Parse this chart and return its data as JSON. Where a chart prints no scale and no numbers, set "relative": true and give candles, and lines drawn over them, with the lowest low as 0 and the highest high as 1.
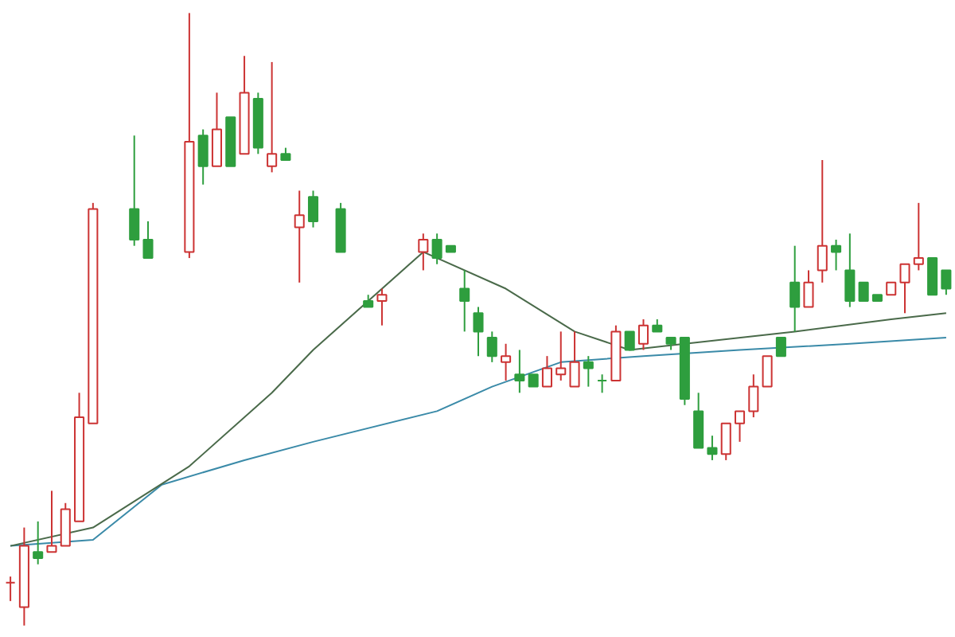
{
  "chart_data": {
    "type": "candlestick",
    "relative": true,
    "categories": [
      null,
      null,
      null,
      null,
      null,
      null,
      null,
      null,
      null,
      null,
      null,
      null,
      null,
      null,
      null,
      null,
      null,
      null,
      null,
      null,
      null,
      null,
      null,
      null,
      null,
      null,
      null,
      null,
      null,
      null,
      null,
      null,
      null,
      null,
      null,
      null,
      null,
      null,
      null,
      null,
      null,
      null,
      null,
      null,
      null,
      null,
      null,
      null,
      null,
      null,
      null,
      null,
      null,
      null,
      null,
      null,
      null,
      null,
      null,
      null,
      null,
      null,
      null,
      null,
      null,
      null,
      null,
      null,
      null
    ],
    "ohlc": [
      [
        0.07,
        0.08,
        0.04,
        0.07
      ],
      [
        0.03,
        0.16,
        0.0,
        0.13
      ],
      [
        0.12,
        0.17,
        0.1,
        0.11
      ],
      [
        0.12,
        0.22,
        0.12,
        0.13
      ],
      [
        0.13,
        0.2,
        0.13,
        0.19
      ],
      [
        0.17,
        0.38,
        0.17,
        0.34
      ],
      [
        0.33,
        0.69,
        0.33,
        0.68
      ],
      null,
      null,
      [
        0.68,
        0.8,
        0.62,
        0.63
      ],
      [
        0.63,
        0.66,
        0.6,
        0.6
      ],
      null,
      null,
      [
        0.61,
        1.0,
        0.6,
        0.79
      ],
      [
        0.8,
        0.81,
        0.72,
        0.75
      ],
      [
        0.75,
        0.87,
        0.75,
        0.81
      ],
      [
        0.83,
        0.83,
        0.75,
        0.75
      ],
      [
        0.77,
        0.93,
        0.77,
        0.87
      ],
      [
        0.86,
        0.87,
        0.77,
        0.78
      ],
      [
        0.75,
        0.92,
        0.74,
        0.77
      ],
      [
        0.77,
        0.78,
        0.76,
        0.76
      ],
      [
        0.65,
        0.71,
        0.56,
        0.67
      ],
      [
        0.7,
        0.71,
        0.65,
        0.66
      ],
      null,
      [
        0.68,
        0.69,
        0.61,
        0.61
      ],
      null,
      [
        0.53,
        0.54,
        0.52,
        0.52
      ],
      [
        0.53,
        0.55,
        0.49,
        0.54
      ],
      null,
      null,
      [
        0.61,
        0.64,
        0.58,
        0.63
      ],
      [
        0.63,
        0.64,
        0.59,
        0.6
      ],
      [
        0.62,
        0.62,
        0.61,
        0.61
      ],
      [
        0.55,
        0.58,
        0.48,
        0.53
      ],
      [
        0.51,
        0.52,
        0.44,
        0.48
      ],
      [
        0.47,
        0.48,
        0.43,
        0.44
      ],
      [
        0.43,
        0.46,
        0.4,
        0.44
      ],
      [
        0.41,
        0.45,
        0.38,
        0.4
      ],
      [
        0.41,
        0.41,
        0.39,
        0.39
      ],
      [
        0.39,
        0.44,
        0.39,
        0.42
      ],
      [
        0.41,
        0.48,
        0.4,
        0.42
      ],
      [
        0.39,
        0.48,
        0.39,
        0.43
      ],
      [
        0.43,
        0.44,
        0.39,
        0.42
      ],
      [
        0.4,
        0.41,
        0.38,
        0.4
      ],
      [
        0.4,
        0.49,
        0.4,
        0.48
      ],
      [
        0.48,
        0.48,
        0.45,
        0.45
      ],
      [
        0.46,
        0.5,
        0.45,
        0.49
      ],
      [
        0.49,
        0.5,
        0.48,
        0.48
      ],
      [
        0.47,
        0.47,
        0.45,
        0.46
      ],
      [
        0.47,
        0.47,
        0.36,
        0.37
      ],
      [
        0.35,
        0.38,
        0.29,
        0.29
      ],
      [
        0.29,
        0.31,
        0.27,
        0.28
      ],
      [
        0.28,
        0.33,
        0.27,
        0.33
      ],
      [
        0.33,
        0.35,
        0.3,
        0.35
      ],
      [
        0.35,
        0.41,
        0.34,
        0.39
      ],
      [
        0.39,
        0.44,
        0.39,
        0.44
      ],
      [
        0.47,
        0.47,
        0.44,
        0.44
      ],
      [
        0.56,
        0.62,
        0.48,
        0.52
      ],
      [
        0.52,
        0.58,
        0.52,
        0.56
      ],
      [
        0.58,
        0.76,
        0.56,
        0.62
      ],
      [
        0.62,
        0.63,
        0.58,
        0.61
      ],
      [
        0.58,
        0.64,
        0.52,
        0.53
      ],
      [
        0.56,
        0.56,
        0.53,
        0.53
      ],
      [
        0.54,
        0.54,
        0.53,
        0.53
      ],
      [
        0.54,
        0.56,
        0.54,
        0.56
      ],
      [
        0.56,
        0.59,
        0.51,
        0.59
      ],
      [
        0.59,
        0.69,
        0.58,
        0.6
      ],
      [
        0.6,
        0.6,
        0.54,
        0.54
      ],
      [
        0.58,
        0.58,
        0.54,
        0.55
      ]
    ],
    "colors": [
      "#cc3333",
      "#cc3333",
      "#2e9e3e",
      "#cc3333",
      "#cc3333",
      "#cc3333",
      "#cc3333",
      null,
      null,
      "#2e9e3e",
      "#2e9e3e",
      null,
      null,
      "#cc3333",
      "#2e9e3e",
      "#cc3333",
      "#2e9e3e",
      "#cc3333",
      "#2e9e3e",
      "#cc3333",
      "#2e9e3e",
      "#cc3333",
      "#2e9e3e",
      null,
      "#2e9e3e",
      null,
      "#2e9e3e",
      "#cc3333",
      null,
      null,
      "#cc3333",
      "#2e9e3e",
      "#2e9e3e",
      "#2e9e3e",
      "#2e9e3e",
      "#2e9e3e",
      "#cc3333",
      "#2e9e3e",
      "#2e9e3e",
      "#cc3333",
      "#cc3333",
      "#cc3333",
      "#2e9e3e",
      "#2e9e3e",
      "#cc3333",
      "#2e9e3e",
      "#cc3333",
      "#2e9e3e",
      "#2e9e3e",
      "#2e9e3e",
      "#2e9e3e",
      "#2e9e3e",
      "#cc3333",
      "#cc3333",
      "#cc3333",
      "#cc3333",
      "#2e9e3e",
      "#2e9e3e",
      "#cc3333",
      "#cc3333",
      "#2e9e3e",
      "#2e9e3e",
      "#2e9e3e",
      "#2e9e3e",
      "#cc3333",
      "#cc3333",
      "#cc3333",
      "#2e9e3e",
      "#2e9e3e"
    ],
    "series": [
      {
        "type": "line",
        "color": "#3a8aa8",
        "values": [
          0.13,
          null,
          null,
          null,
          null,
          null,
          0.14,
          null,
          null,
          null,
          null,
          0.23,
          null,
          null,
          null,
          null,
          null,
          0.27,
          null,
          null,
          null,
          null,
          0.3,
          null,
          null,
          null,
          null,
          null,
          null,
          null,
          null,
          0.35,
          null,
          null,
          null,
          0.39,
          null,
          null,
          null,
          null,
          0.43,
          null,
          null,
          null,
          null,
          null,
          0.44,
          null,
          null,
          null,
          null,
          null,
          null,
          0.45,
          null,
          null,
          null,
          null,
          null,
          null,
          null,
          0.46,
          null,
          null,
          null,
          null,
          null,
          null,
          0.47
        ]
      },
      {
        "type": "line",
        "color": "#4a6a4a",
        "values": [
          0.13,
          null,
          null,
          null,
          null,
          null,
          0.16,
          null,
          null,
          null,
          null,
          null,
          null,
          0.26,
          null,
          null,
          null,
          null,
          null,
          0.38,
          null,
          null,
          0.45,
          null,
          null,
          null,
          null,
          null,
          null,
          null,
          0.61,
          null,
          null,
          null,
          null,
          null,
          0.55,
          null,
          null,
          null,
          null,
          0.48,
          null,
          null,
          null,
          0.45,
          null,
          null,
          null,
          0.46,
          null,
          null,
          null,
          null,
          null,
          null,
          null,
          0.48,
          null,
          null,
          null,
          null,
          null,
          null,
          0.5,
          null,
          null,
          null,
          0.51
        ]
      }
    ]
  }
}
